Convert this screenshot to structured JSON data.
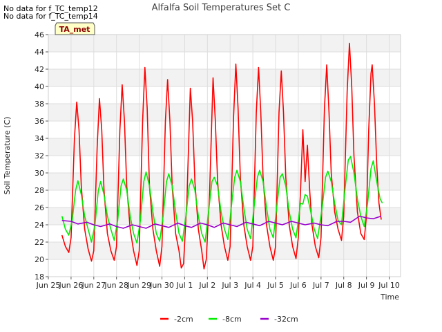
{
  "notices": [
    "No data for f_TC_temp12",
    "No data for f_TC_temp14"
  ],
  "badge": "TA_met",
  "chart_data": {
    "type": "line",
    "title": "Alfalfa Soil Temperatures Set C",
    "xlabel": "Time",
    "ylabel": "Soil Temperature (C)",
    "ylim": [
      18,
      46
    ],
    "yticks": [
      18,
      20,
      22,
      24,
      26,
      28,
      30,
      32,
      34,
      36,
      38,
      40,
      42,
      44,
      46
    ],
    "xlim": [
      0,
      15.5
    ],
    "xticks": [
      {
        "x": 0,
        "label": "Jun 25"
      },
      {
        "x": 1,
        "label": "Jun 26"
      },
      {
        "x": 2,
        "label": "Jun 27"
      },
      {
        "x": 3,
        "label": "Jun 28"
      },
      {
        "x": 4,
        "label": "Jun 29"
      },
      {
        "x": 5,
        "label": "Jun 30"
      },
      {
        "x": 6,
        "label": "Jul 1"
      },
      {
        "x": 7,
        "label": "Jul 2"
      },
      {
        "x": 8,
        "label": "Jul 3"
      },
      {
        "x": 9,
        "label": "Jul 4"
      },
      {
        "x": 10,
        "label": "Jul 5"
      },
      {
        "x": 11,
        "label": "Jul 6"
      },
      {
        "x": 12,
        "label": "Jul 7"
      },
      {
        "x": 13,
        "label": "Jul 8"
      },
      {
        "x": 14,
        "label": "Jul 9"
      },
      {
        "x": 15,
        "label": "Jul 10"
      }
    ],
    "grid": true,
    "legend_position": "bottom",
    "series": [
      {
        "name": "-2cm",
        "color": "#ff0000",
        "points": [
          [
            0.6,
            22.8
          ],
          [
            0.75,
            21.5
          ],
          [
            0.9,
            20.8
          ],
          [
            1.0,
            22.5
          ],
          [
            1.15,
            34.0
          ],
          [
            1.25,
            38.2
          ],
          [
            1.35,
            35.0
          ],
          [
            1.45,
            28.5
          ],
          [
            1.6,
            23.5
          ],
          [
            1.75,
            21.2
          ],
          [
            1.9,
            19.8
          ],
          [
            2.0,
            21.0
          ],
          [
            2.15,
            33.0
          ],
          [
            2.25,
            38.6
          ],
          [
            2.35,
            35.0
          ],
          [
            2.45,
            28.0
          ],
          [
            2.6,
            23.0
          ],
          [
            2.75,
            21.0
          ],
          [
            2.9,
            19.9
          ],
          [
            3.0,
            21.5
          ],
          [
            3.15,
            35.0
          ],
          [
            3.25,
            40.2
          ],
          [
            3.35,
            36.0
          ],
          [
            3.45,
            28.5
          ],
          [
            3.6,
            23.5
          ],
          [
            3.75,
            21.0
          ],
          [
            3.9,
            19.3
          ],
          [
            4.0,
            21.0
          ],
          [
            4.15,
            36.0
          ],
          [
            4.25,
            42.2
          ],
          [
            4.35,
            37.5
          ],
          [
            4.45,
            28.5
          ],
          [
            4.6,
            23.5
          ],
          [
            4.75,
            21.0
          ],
          [
            4.9,
            19.2
          ],
          [
            5.0,
            21.5
          ],
          [
            5.15,
            36.0
          ],
          [
            5.25,
            40.8
          ],
          [
            5.35,
            36.0
          ],
          [
            5.45,
            28.5
          ],
          [
            5.6,
            23.0
          ],
          [
            5.75,
            21.0
          ],
          [
            5.85,
            19.0
          ],
          [
            5.95,
            19.5
          ],
          [
            6.1,
            27.0
          ],
          [
            6.25,
            39.8
          ],
          [
            6.35,
            36.0
          ],
          [
            6.45,
            29.0
          ],
          [
            6.6,
            23.5
          ],
          [
            6.75,
            21.0
          ],
          [
            6.85,
            18.9
          ],
          [
            6.95,
            20.0
          ],
          [
            7.1,
            28.0
          ],
          [
            7.25,
            41.0
          ],
          [
            7.35,
            36.0
          ],
          [
            7.45,
            29.0
          ],
          [
            7.6,
            24.0
          ],
          [
            7.75,
            21.5
          ],
          [
            7.9,
            19.9
          ],
          [
            8.0,
            21.5
          ],
          [
            8.15,
            36.5
          ],
          [
            8.25,
            42.6
          ],
          [
            8.35,
            37.5
          ],
          [
            8.45,
            29.5
          ],
          [
            8.6,
            24.0
          ],
          [
            8.75,
            21.5
          ],
          [
            8.9,
            19.9
          ],
          [
            9.0,
            21.5
          ],
          [
            9.15,
            37.0
          ],
          [
            9.25,
            42.2
          ],
          [
            9.35,
            37.0
          ],
          [
            9.45,
            29.5
          ],
          [
            9.6,
            24.0
          ],
          [
            9.75,
            21.5
          ],
          [
            9.9,
            19.9
          ],
          [
            10.0,
            21.5
          ],
          [
            10.15,
            37.0
          ],
          [
            10.25,
            41.8
          ],
          [
            10.35,
            37.0
          ],
          [
            10.45,
            29.5
          ],
          [
            10.6,
            24.0
          ],
          [
            10.75,
            21.5
          ],
          [
            10.9,
            20.1
          ],
          [
            11.0,
            22.5
          ],
          [
            11.1,
            28.0
          ],
          [
            11.2,
            35.0
          ],
          [
            11.3,
            29.0
          ],
          [
            11.4,
            33.2
          ],
          [
            11.5,
            28.0
          ],
          [
            11.6,
            24.0
          ],
          [
            11.75,
            21.5
          ],
          [
            11.9,
            20.2
          ],
          [
            12.0,
            22.5
          ],
          [
            12.15,
            37.5
          ],
          [
            12.25,
            42.5
          ],
          [
            12.35,
            37.0
          ],
          [
            12.45,
            30.0
          ],
          [
            12.6,
            25.5
          ],
          [
            12.75,
            23.5
          ],
          [
            12.9,
            22.2
          ],
          [
            13.0,
            25.0
          ],
          [
            13.15,
            39.5
          ],
          [
            13.25,
            45.0
          ],
          [
            13.35,
            40.0
          ],
          [
            13.45,
            32.0
          ],
          [
            13.6,
            25.5
          ],
          [
            13.75,
            23.0
          ],
          [
            13.9,
            22.3
          ],
          [
            14.0,
            25.0
          ],
          [
            14.1,
            35.0
          ],
          [
            14.2,
            41.5
          ],
          [
            14.25,
            42.5
          ],
          [
            14.35,
            38.0
          ],
          [
            14.45,
            31.0
          ],
          [
            14.55,
            26.5
          ],
          [
            14.65,
            24.6
          ]
        ]
      },
      {
        "name": "-8cm",
        "color": "#00ee00",
        "points": [
          [
            0.6,
            25.0
          ],
          [
            0.75,
            23.5
          ],
          [
            0.9,
            22.8
          ],
          [
            1.05,
            24.5
          ],
          [
            1.2,
            28.0
          ],
          [
            1.3,
            29.1
          ],
          [
            1.45,
            27.5
          ],
          [
            1.6,
            25.0
          ],
          [
            1.75,
            23.5
          ],
          [
            1.9,
            22.0
          ],
          [
            2.05,
            24.0
          ],
          [
            2.2,
            28.0
          ],
          [
            2.3,
            29.0
          ],
          [
            2.45,
            27.5
          ],
          [
            2.6,
            25.0
          ],
          [
            2.75,
            23.5
          ],
          [
            2.9,
            22.2
          ],
          [
            3.05,
            24.5
          ],
          [
            3.2,
            28.5
          ],
          [
            3.3,
            29.3
          ],
          [
            3.45,
            28.0
          ],
          [
            3.6,
            25.0
          ],
          [
            3.75,
            23.0
          ],
          [
            3.9,
            21.9
          ],
          [
            4.05,
            24.5
          ],
          [
            4.2,
            29.0
          ],
          [
            4.3,
            30.1
          ],
          [
            4.45,
            28.5
          ],
          [
            4.6,
            25.5
          ],
          [
            4.75,
            23.0
          ],
          [
            4.9,
            22.1
          ],
          [
            5.05,
            25.0
          ],
          [
            5.2,
            29.0
          ],
          [
            5.3,
            29.9
          ],
          [
            5.45,
            28.5
          ],
          [
            5.6,
            25.5
          ],
          [
            5.75,
            23.0
          ],
          [
            5.9,
            22.1
          ],
          [
            6.05,
            25.0
          ],
          [
            6.2,
            28.5
          ],
          [
            6.3,
            29.3
          ],
          [
            6.45,
            28.0
          ],
          [
            6.6,
            25.0
          ],
          [
            6.75,
            23.0
          ],
          [
            6.9,
            22.0
          ],
          [
            7.05,
            25.5
          ],
          [
            7.2,
            29.0
          ],
          [
            7.3,
            29.5
          ],
          [
            7.45,
            28.5
          ],
          [
            7.6,
            25.5
          ],
          [
            7.75,
            23.5
          ],
          [
            7.9,
            22.3
          ],
          [
            8.05,
            26.0
          ],
          [
            8.2,
            29.5
          ],
          [
            8.3,
            30.3
          ],
          [
            8.45,
            29.0
          ],
          [
            8.6,
            26.0
          ],
          [
            8.75,
            23.5
          ],
          [
            8.9,
            22.4
          ],
          [
            9.05,
            26.0
          ],
          [
            9.2,
            29.5
          ],
          [
            9.3,
            30.3
          ],
          [
            9.45,
            29.0
          ],
          [
            9.6,
            26.0
          ],
          [
            9.75,
            23.5
          ],
          [
            9.9,
            22.5
          ],
          [
            10.05,
            26.0
          ],
          [
            10.2,
            29.5
          ],
          [
            10.3,
            29.9
          ],
          [
            10.45,
            28.5
          ],
          [
            10.6,
            25.5
          ],
          [
            10.75,
            23.5
          ],
          [
            10.9,
            22.5
          ],
          [
            11.0,
            24.5
          ],
          [
            11.1,
            26.5
          ],
          [
            11.2,
            26.4
          ],
          [
            11.3,
            27.5
          ],
          [
            11.4,
            27.3
          ],
          [
            11.55,
            25.5
          ],
          [
            11.7,
            23.5
          ],
          [
            11.85,
            22.4
          ],
          [
            12.05,
            26.0
          ],
          [
            12.2,
            29.5
          ],
          [
            12.3,
            30.2
          ],
          [
            12.45,
            29.0
          ],
          [
            12.6,
            26.5
          ],
          [
            12.75,
            24.5
          ],
          [
            12.9,
            24.0
          ],
          [
            13.05,
            28.0
          ],
          [
            13.2,
            31.5
          ],
          [
            13.3,
            31.9
          ],
          [
            13.45,
            30.0
          ],
          [
            13.6,
            27.0
          ],
          [
            13.75,
            25.0
          ],
          [
            13.9,
            23.8
          ],
          [
            14.05,
            26.5
          ],
          [
            14.2,
            30.5
          ],
          [
            14.3,
            31.4
          ],
          [
            14.45,
            29.0
          ],
          [
            14.6,
            27.0
          ],
          [
            14.7,
            26.5
          ]
        ]
      },
      {
        "name": "-32cm",
        "color": "#9900cc",
        "points": [
          [
            0.6,
            24.5
          ],
          [
            1.0,
            24.4
          ],
          [
            1.3,
            24.1
          ],
          [
            1.7,
            24.3
          ],
          [
            2.0,
            24.0
          ],
          [
            2.3,
            23.8
          ],
          [
            2.7,
            24.1
          ],
          [
            3.0,
            23.8
          ],
          [
            3.3,
            23.6
          ],
          [
            3.7,
            24.0
          ],
          [
            4.0,
            23.8
          ],
          [
            4.3,
            23.6
          ],
          [
            4.7,
            24.1
          ],
          [
            5.0,
            23.9
          ],
          [
            5.3,
            23.7
          ],
          [
            5.7,
            24.2
          ],
          [
            6.0,
            23.9
          ],
          [
            6.3,
            23.7
          ],
          [
            6.7,
            24.2
          ],
          [
            7.0,
            24.0
          ],
          [
            7.3,
            23.7
          ],
          [
            7.7,
            24.2
          ],
          [
            8.0,
            24.0
          ],
          [
            8.3,
            23.8
          ],
          [
            8.7,
            24.3
          ],
          [
            9.0,
            24.1
          ],
          [
            9.3,
            23.9
          ],
          [
            9.7,
            24.4
          ],
          [
            10.0,
            24.2
          ],
          [
            10.3,
            24.0
          ],
          [
            10.7,
            24.4
          ],
          [
            11.0,
            24.2
          ],
          [
            11.3,
            24.0
          ],
          [
            11.7,
            24.2
          ],
          [
            12.0,
            24.0
          ],
          [
            12.3,
            23.9
          ],
          [
            12.7,
            24.4
          ],
          [
            13.0,
            24.4
          ],
          [
            13.3,
            24.3
          ],
          [
            13.7,
            25.0
          ],
          [
            14.0,
            24.8
          ],
          [
            14.3,
            24.7
          ],
          [
            14.65,
            25.0
          ]
        ]
      }
    ]
  }
}
